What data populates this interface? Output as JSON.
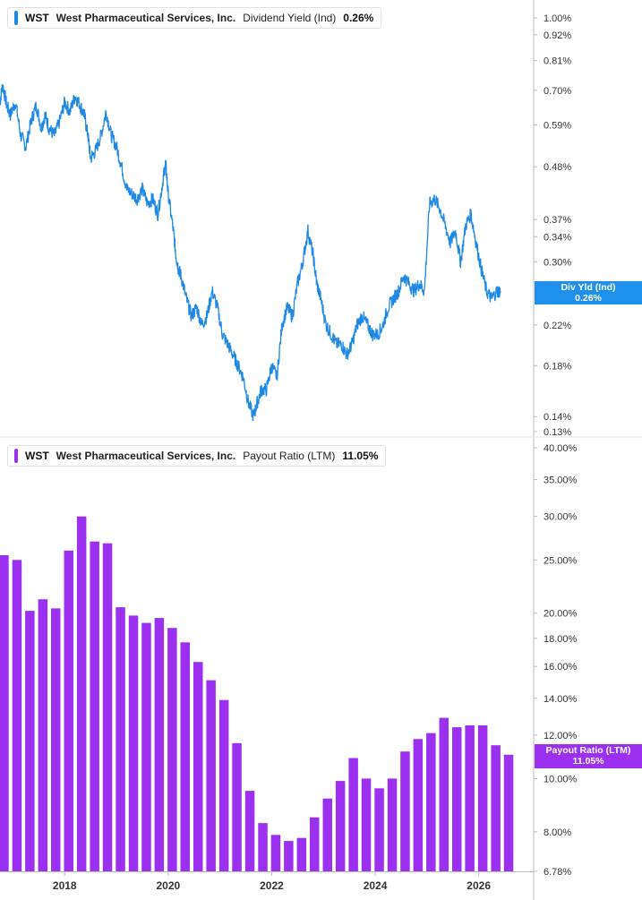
{
  "colors": {
    "yield_line": "#1e88e5",
    "payout_bar": "#9b30f0",
    "grid": "#e6e6e6",
    "axis": "#bbbbbb"
  },
  "legend_yield": {
    "ticker": "WST",
    "company": "West Pharmaceutical Services, Inc.",
    "metric": "Dividend Yield (Ind)",
    "value": "0.26%"
  },
  "legend_payout": {
    "ticker": "WST",
    "company": "West Pharmaceutical Services, Inc.",
    "metric": "Payout Ratio (LTM)",
    "value": "11.05%"
  },
  "badge_yield": {
    "label": "Div Yld (Ind)",
    "value": "0.26%"
  },
  "badge_payout": {
    "label": "Payout Ratio (LTM)",
    "value": "11.05%"
  },
  "chart_data": [
    {
      "type": "line",
      "title": "",
      "scale": "log",
      "ylim": [
        0.128,
        1.04
      ],
      "xlim": [
        2016.75,
        2026.75
      ],
      "y_ticks": [
        "1.00%",
        "0.92%",
        "0.81%",
        "0.70%",
        "0.59%",
        "0.48%",
        "0.37%",
        "0.34%",
        "0.30%",
        "0.22%",
        "0.18%",
        "0.14%",
        "0.13%"
      ],
      "y_tick_values": [
        1.0,
        0.92,
        0.81,
        0.7,
        0.59,
        0.48,
        0.37,
        0.34,
        0.3,
        0.22,
        0.18,
        0.14,
        0.13
      ],
      "series": [
        {
          "x": [
            2016.75,
            2016.8,
            2016.88,
            2016.95,
            2017.05,
            2017.15,
            2017.25,
            2017.35,
            2017.45,
            2017.55,
            2017.62,
            2017.7,
            2017.8,
            2017.9,
            2018.0,
            2018.1,
            2018.2,
            2018.3,
            2018.38,
            2018.45,
            2018.5,
            2018.6,
            2018.7,
            2018.8,
            2018.9,
            2019.0,
            2019.1,
            2019.2,
            2019.3,
            2019.4,
            2019.5,
            2019.6,
            2019.7,
            2019.8,
            2019.9,
            2019.95,
            2020.0,
            2020.1,
            2020.15,
            2020.2,
            2020.25,
            2020.35,
            2020.45,
            2020.55,
            2020.65,
            2020.75,
            2020.85,
            2020.95,
            2021.05,
            2021.15,
            2021.25,
            2021.35,
            2021.45,
            2021.55,
            2021.65,
            2021.72,
            2021.8,
            2021.9,
            2022.0,
            2022.1,
            2022.2,
            2022.3,
            2022.4,
            2022.5,
            2022.6,
            2022.7,
            2022.8,
            2022.87,
            2022.95,
            2023.05,
            2023.15,
            2023.25,
            2023.35,
            2023.45,
            2023.55,
            2023.65,
            2023.75,
            2023.85,
            2023.95,
            2024.05,
            2024.15,
            2024.25,
            2024.35,
            2024.45,
            2024.55,
            2024.65,
            2024.75,
            2024.85,
            2024.95,
            2025.05,
            2025.15,
            2025.25,
            2025.35,
            2025.45,
            2025.55,
            2025.65,
            2025.75,
            2025.85,
            2025.95,
            2026.05,
            2026.15,
            2026.25,
            2026.35,
            2026.42
          ],
          "values": [
            0.66,
            0.72,
            0.65,
            0.62,
            0.66,
            0.56,
            0.53,
            0.6,
            0.65,
            0.58,
            0.62,
            0.58,
            0.56,
            0.6,
            0.66,
            0.63,
            0.68,
            0.65,
            0.62,
            0.56,
            0.5,
            0.52,
            0.56,
            0.63,
            0.56,
            0.53,
            0.48,
            0.43,
            0.42,
            0.41,
            0.43,
            0.4,
            0.41,
            0.38,
            0.45,
            0.49,
            0.42,
            0.35,
            0.31,
            0.29,
            0.28,
            0.25,
            0.23,
            0.24,
            0.22,
            0.23,
            0.26,
            0.24,
            0.21,
            0.2,
            0.19,
            0.18,
            0.17,
            0.15,
            0.14,
            0.15,
            0.16,
            0.16,
            0.18,
            0.17,
            0.22,
            0.24,
            0.23,
            0.27,
            0.3,
            0.35,
            0.31,
            0.27,
            0.25,
            0.22,
            0.21,
            0.2,
            0.2,
            0.19,
            0.2,
            0.22,
            0.23,
            0.22,
            0.21,
            0.21,
            0.22,
            0.24,
            0.25,
            0.26,
            0.28,
            0.27,
            0.26,
            0.27,
            0.26,
            0.4,
            0.41,
            0.39,
            0.36,
            0.33,
            0.35,
            0.3,
            0.36,
            0.38,
            0.33,
            0.29,
            0.26,
            0.25,
            0.26,
            0.26
          ]
        }
      ]
    },
    {
      "type": "bar",
      "title": "",
      "scale": "log",
      "ylim": [
        6.78,
        40.0
      ],
      "x_ticks": [
        "2018",
        "2020",
        "2022",
        "2024",
        "2026"
      ],
      "x_tick_values": [
        2018,
        2020,
        2022,
        2024,
        2026
      ],
      "y_ticks": [
        "40.00%",
        "35.00%",
        "30.00%",
        "25.00%",
        "20.00%",
        "18.00%",
        "16.00%",
        "14.00%",
        "12.00%",
        "10.00%",
        "8.00%",
        "6.78%"
      ],
      "y_tick_values": [
        40,
        35,
        30,
        25,
        20,
        18,
        16,
        14,
        12,
        10,
        8,
        6.78
      ],
      "series": [
        {
          "x": [
            2016.75,
            2017.0,
            2017.25,
            2017.5,
            2017.75,
            2018.0,
            2018.25,
            2018.5,
            2018.75,
            2019.0,
            2019.25,
            2019.5,
            2019.75,
            2020.0,
            2020.25,
            2020.5,
            2020.75,
            2021.0,
            2021.25,
            2021.5,
            2021.75,
            2022.0,
            2022.25,
            2022.5,
            2022.75,
            2023.0,
            2023.25,
            2023.5,
            2023.75,
            2024.0,
            2024.25,
            2024.5,
            2024.75,
            2025.0,
            2025.25,
            2025.5,
            2025.75,
            2026.0,
            2026.25,
            2026.5
          ],
          "values": [
            25.5,
            25.0,
            20.2,
            21.2,
            20.4,
            26.0,
            30.0,
            27.0,
            26.8,
            20.5,
            19.8,
            19.2,
            19.6,
            18.8,
            17.7,
            16.3,
            15.1,
            13.9,
            11.6,
            9.5,
            8.3,
            7.9,
            7.7,
            7.8,
            8.5,
            9.2,
            9.9,
            10.9,
            10.0,
            9.6,
            10.0,
            11.2,
            11.8,
            12.1,
            12.9,
            12.4,
            12.5,
            12.5,
            11.5,
            11.05
          ]
        }
      ]
    }
  ]
}
